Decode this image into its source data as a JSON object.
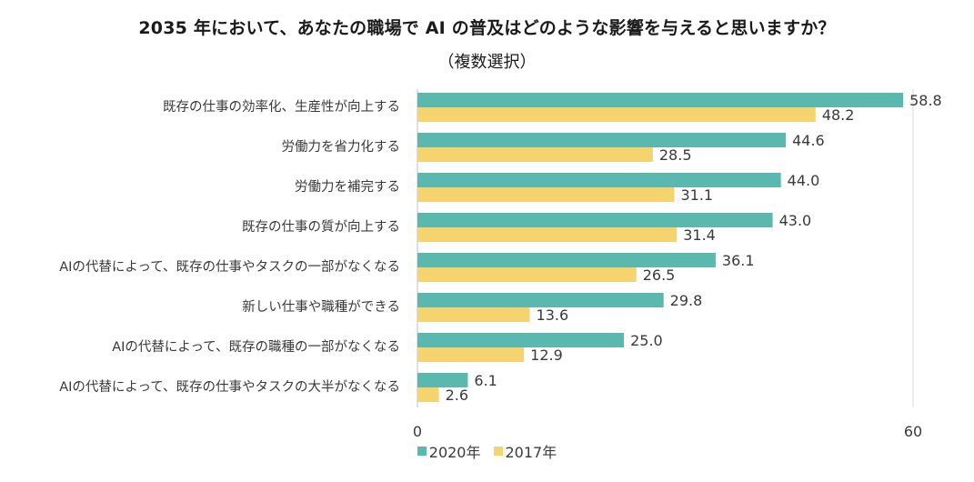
{
  "chart_data": {
    "type": "bar",
    "orientation": "horizontal",
    "title": "2035 年において、あなたの職場で AI の普及はどのような影響を与えると思いますか？",
    "subtitle": "（複数選択）",
    "categories": [
      "既存の仕事の効率化、生産性が向上する",
      "労働力を省力化する",
      "労働力を補完する",
      "既存の仕事の質が向上する",
      "AIの代替によって、既存の仕事やタスクの一部がなくなる",
      "新しい仕事や職種ができる",
      "AIの代替によって、既存の職種の一部がなくなる",
      "AIの代替によって、既存の仕事やタスクの大半がなくなる"
    ],
    "series": [
      {
        "name": "2020年",
        "color": "#5bb8af",
        "values": [
          58.8,
          44.6,
          44.0,
          43.0,
          36.1,
          29.8,
          25.0,
          6.1
        ],
        "labels": [
          "58.8",
          "44.6",
          "44.0",
          "43.0",
          "36.1",
          "29.8",
          "25.0",
          "6.1"
        ]
      },
      {
        "name": "2017年",
        "color": "#f5d36e",
        "values": [
          48.2,
          28.5,
          31.1,
          31.4,
          26.5,
          13.6,
          12.9,
          2.6
        ],
        "labels": [
          "48.2",
          "28.5",
          "31.1",
          "31.4",
          "26.5",
          "13.6",
          "12.9",
          "2.6"
        ]
      }
    ],
    "xlim": [
      0,
      60
    ],
    "xticks": [
      "0",
      "60"
    ],
    "grid": "vertical-at-max",
    "legend_position": "bottom-center"
  }
}
